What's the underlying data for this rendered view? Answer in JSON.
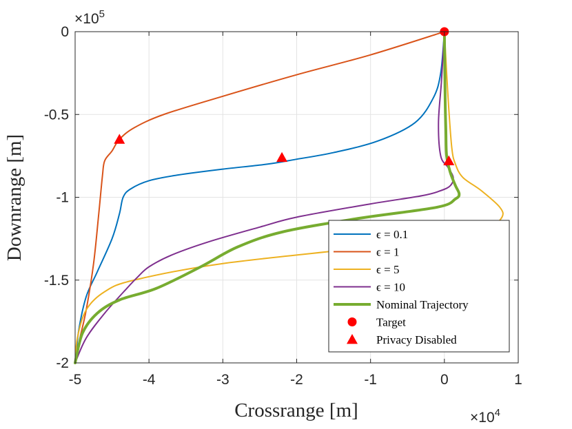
{
  "chart_data": {
    "type": "line",
    "title": "",
    "xlabel": "Crossrange [m]",
    "ylabel": "Downrange [m]",
    "x_exponent": "×10",
    "x_exponent_power": "4",
    "y_exponent": "×10",
    "y_exponent_power": "5",
    "xlim": [
      -50000,
      10000
    ],
    "ylim": [
      -200000,
      0
    ],
    "xticks": [
      -50000,
      -40000,
      -30000,
      -20000,
      -10000,
      0,
      10000
    ],
    "xtick_labels": [
      "-5",
      "-4",
      "-3",
      "-2",
      "-1",
      "0",
      "1"
    ],
    "yticks": [
      0,
      -50000,
      -100000,
      -150000,
      -200000
    ],
    "ytick_labels": [
      "0",
      "-0.5",
      "-1",
      "-1.5",
      "-2"
    ],
    "grid": true,
    "legend_position": "bottom-right",
    "series": [
      {
        "name": "ϵ = 0.1",
        "color": "#0072BD",
        "width": 2,
        "x": [
          0,
          -500,
          -1500,
          -4000,
          -9000,
          -15000,
          -20000,
          -24000,
          -30000,
          -36000,
          -40000,
          -42500,
          -43500,
          -44000,
          -45000,
          -47000,
          -48500,
          -49500,
          -50000
        ],
        "y": [
          0,
          -25000,
          -40000,
          -55000,
          -66000,
          -73000,
          -77000,
          -80000,
          -83000,
          -86500,
          -90000,
          -95000,
          -100000,
          -110000,
          -125000,
          -145000,
          -160000,
          -180000,
          -200000
        ]
      },
      {
        "name": "ϵ = 1",
        "color": "#D95319",
        "width": 2,
        "x": [
          0,
          -10000,
          -20000,
          -30000,
          -38000,
          -42000,
          -44000,
          -45000,
          -46000,
          -46300,
          -46800,
          -47500,
          -48500,
          -49400,
          -50000
        ],
        "y": [
          0,
          -14000,
          -26000,
          -39000,
          -50000,
          -58000,
          -65000,
          -72000,
          -78000,
          -87000,
          -110000,
          -140000,
          -168000,
          -186000,
          -200000
        ]
      },
      {
        "name": "ϵ = 5",
        "color": "#EDB120",
        "width": 2,
        "x": [
          0,
          500,
          1000,
          1500,
          2500,
          5000,
          7500,
          7800,
          6000,
          1000,
          -10000,
          -30000,
          -42000,
          -46000,
          -48500,
          -49700,
          -50000
        ],
        "y": [
          0,
          -40000,
          -70000,
          -80000,
          -88000,
          -96000,
          -106000,
          -112000,
          -118000,
          -123000,
          -130000,
          -140000,
          -150000,
          -157000,
          -168000,
          -185000,
          -200000
        ]
      },
      {
        "name": "ϵ = 10",
        "color": "#7E2F8E",
        "width": 2,
        "x": [
          0,
          -400,
          -800,
          -500,
          500,
          1200,
          800,
          -500,
          -3000,
          -10000,
          -20000,
          -25000,
          -32000,
          -37000,
          -40000,
          -41500,
          -43000,
          -46000,
          -48500,
          -50000
        ],
        "y": [
          0,
          -30000,
          -55000,
          -75000,
          -82000,
          -88000,
          -93000,
          -96000,
          -99000,
          -104000,
          -112000,
          -118000,
          -127000,
          -135000,
          -142000,
          -148000,
          -155000,
          -170000,
          -185000,
          -200000
        ]
      },
      {
        "name": "Nominal Trajectory",
        "color": "#77AC30",
        "width": 4,
        "x": [
          0,
          100,
          200,
          300,
          800,
          1500,
          2000,
          1500,
          -1000,
          -12000,
          -22000,
          -28000,
          -33000,
          -39000,
          -44000,
          -47000,
          -49000,
          -50000
        ],
        "y": [
          0,
          -40000,
          -60000,
          -75000,
          -85000,
          -93000,
          -98000,
          -101000,
          -106000,
          -113000,
          -121000,
          -130000,
          -142000,
          -155000,
          -162000,
          -170000,
          -182000,
          -200000
        ]
      }
    ],
    "markers": [
      {
        "name": "Target",
        "shape": "circle",
        "color": "#FF0000",
        "points": [
          [
            0,
            0
          ]
        ]
      },
      {
        "name": "Privacy Disabled",
        "shape": "triangle",
        "color": "#FF0000",
        "points": [
          [
            -44000,
            -65000
          ],
          [
            -22000,
            -76000
          ],
          [
            600,
            -78000
          ]
        ]
      }
    ]
  }
}
